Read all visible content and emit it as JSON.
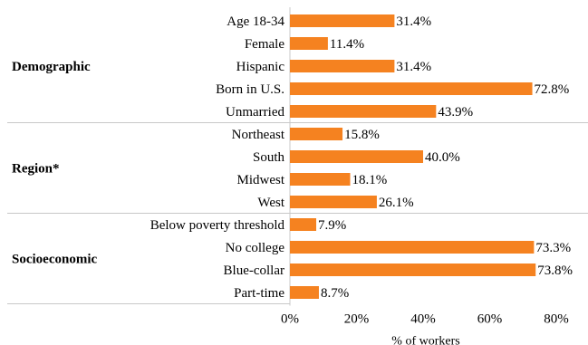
{
  "chart_data": {
    "type": "bar",
    "orientation": "horizontal",
    "xlabel": "% of workers",
    "xlim": [
      0,
      80
    ],
    "xticks": [
      "0%",
      "20%",
      "40%",
      "60%",
      "80%"
    ],
    "bar_color": "#f58220",
    "groups": [
      {
        "name": "Demographic",
        "categories": [
          "Age 18-34",
          "Female",
          "Hispanic",
          "Born in U.S.",
          "Unmarried"
        ],
        "values": [
          31.4,
          11.4,
          31.4,
          72.8,
          43.9
        ],
        "labels": [
          "31.4%",
          "11.4%",
          "31.4%",
          "72.8%",
          "43.9%"
        ]
      },
      {
        "name": "Region*",
        "categories": [
          "Northeast",
          "South",
          "Midwest",
          "West"
        ],
        "values": [
          15.8,
          40.0,
          18.1,
          26.1
        ],
        "labels": [
          "15.8%",
          "40.0%",
          "18.1%",
          "26.1%"
        ]
      },
      {
        "name": "Socioeconomic",
        "categories": [
          "Below poverty threshold",
          "No college",
          "Blue-collar",
          "Part-time"
        ],
        "values": [
          7.9,
          73.3,
          73.8,
          8.7
        ],
        "labels": [
          "7.9%",
          "73.3%",
          "73.8%",
          "8.7%"
        ]
      }
    ]
  }
}
